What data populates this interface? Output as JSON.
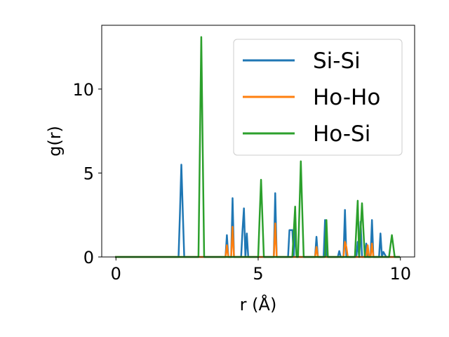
{
  "chart_data": {
    "type": "line",
    "title": "",
    "xlabel": "r (Å)",
    "ylabel": "g(r)",
    "xlim": [
      -0.5,
      10.5
    ],
    "ylim": [
      0,
      13.8
    ],
    "xticks": [
      0,
      5,
      10
    ],
    "yticks": [
      0,
      5,
      10
    ],
    "grid": false,
    "legend_position": "upper-right",
    "series": [
      {
        "name": "Si-Si",
        "color": "#1f77b4",
        "x": [
          0,
          2.2,
          2.25,
          2.3,
          2.35,
          2.4,
          3.85,
          3.9,
          3.95,
          4.05,
          4.1,
          4.15,
          4.4,
          4.45,
          4.5,
          4.55,
          4.6,
          4.65,
          4.7,
          5.55,
          5.6,
          5.65,
          5.7,
          6.05,
          6.1,
          6.2,
          6.25,
          6.3,
          6.35,
          7.0,
          7.05,
          7.1,
          7.3,
          7.35,
          7.4,
          7.45,
          7.8,
          7.85,
          7.9,
          8.0,
          8.05,
          8.1,
          8.2,
          8.45,
          8.5,
          8.55,
          8.6,
          8.65,
          8.75,
          8.8,
          8.85,
          8.95,
          9.0,
          9.05,
          9.1,
          9.25,
          9.3,
          9.35,
          9.4,
          9.5,
          9.55,
          9.95
        ],
        "y": [
          0,
          0,
          2.6,
          5.5,
          2.6,
          0,
          0,
          1.3,
          0,
          0,
          3.5,
          0,
          0,
          1.6,
          2.9,
          0,
          1.4,
          0,
          0,
          0,
          3.8,
          0,
          0,
          0,
          1.6,
          1.6,
          0,
          1.7,
          0,
          0,
          1.2,
          0,
          0,
          2.2,
          0,
          0,
          0,
          0.35,
          0,
          0,
          2.8,
          0,
          0,
          0,
          0.9,
          0,
          2.1,
          0,
          0,
          0.8,
          0,
          0,
          2.2,
          0,
          0,
          0,
          1.4,
          0,
          0.3,
          0,
          0,
          0
        ]
      },
      {
        "name": "Ho-Ho",
        "color": "#ff7f0e",
        "x": [
          0,
          3.85,
          3.9,
          3.95,
          4.05,
          4.1,
          4.15,
          5.55,
          5.6,
          5.65,
          7.0,
          7.05,
          7.1,
          8.0,
          8.05,
          8.1,
          8.15,
          8.8,
          8.85,
          8.9,
          8.95,
          9.0,
          9.05,
          9.1,
          9.95
        ],
        "y": [
          0,
          0,
          0.7,
          0,
          0,
          1.8,
          0,
          0,
          2.0,
          0,
          0,
          0.6,
          0,
          0,
          0.9,
          0.6,
          0,
          0,
          0.7,
          0,
          0,
          0.8,
          0,
          0,
          0
        ]
      },
      {
        "name": "Ho-Si",
        "color": "#2ca02c",
        "x": [
          0,
          2.9,
          2.95,
          3.0,
          3.05,
          3.1,
          5.0,
          5.05,
          5.1,
          5.15,
          5.2,
          6.2,
          6.25,
          6.3,
          6.35,
          6.4,
          6.45,
          6.5,
          6.55,
          6.6,
          7.35,
          7.4,
          7.45,
          7.5,
          8.4,
          8.45,
          8.5,
          8.55,
          8.6,
          8.65,
          8.7,
          8.75,
          9.6,
          9.65,
          9.7,
          9.75,
          9.8,
          9.95
        ],
        "y": [
          0,
          0,
          6.5,
          13.1,
          6.5,
          0,
          0,
          2.3,
          4.6,
          2.3,
          0,
          0,
          1.5,
          3.0,
          0,
          0,
          2.8,
          5.7,
          2.8,
          0,
          0,
          2.2,
          0,
          0,
          0,
          1.7,
          3.35,
          0,
          1.6,
          3.2,
          1.6,
          0,
          0,
          0.65,
          1.3,
          0.65,
          0,
          0
        ]
      }
    ]
  }
}
